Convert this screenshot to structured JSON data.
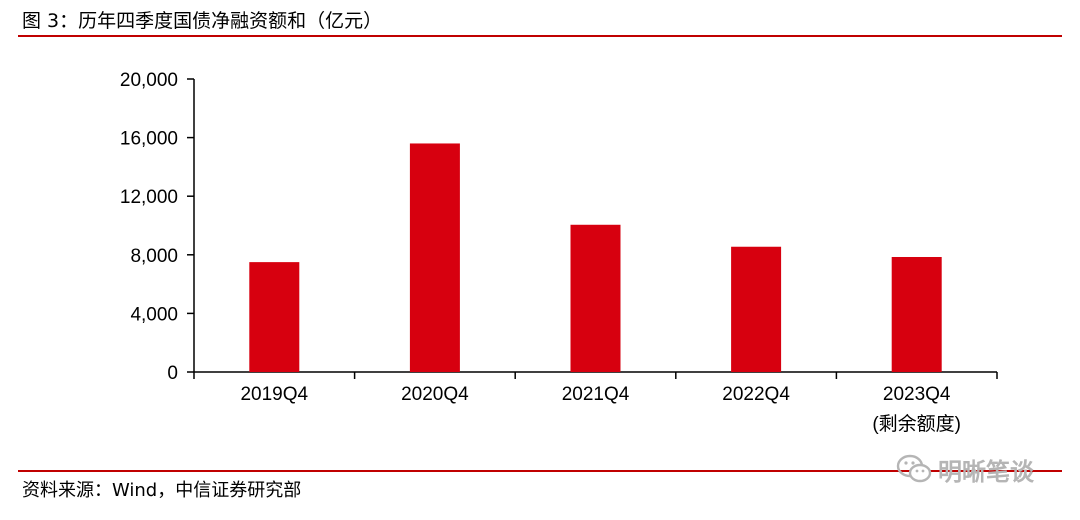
{
  "header": {
    "title": "图 3：历年四季度国债净融资额和（亿元）"
  },
  "footer": {
    "source": "资料来源：Wind，中信证券研究部"
  },
  "watermark": {
    "text": "明晰笔谈",
    "icon": "wechat-icon"
  },
  "colors": {
    "bar": "#d7000f",
    "rule": "#c00000"
  },
  "chart_data": {
    "type": "bar",
    "title": "历年四季度国债净融资额和（亿元）",
    "categories": [
      "2019Q4",
      "2020Q4",
      "2021Q4",
      "2022Q4",
      "2023Q4"
    ],
    "category_sublabels": [
      "",
      "",
      "",
      "",
      "(剩余额度)"
    ],
    "values": [
      7500,
      15600,
      10050,
      8550,
      7850
    ],
    "yticks": [
      "0",
      "4,000",
      "8,000",
      "12,000",
      "16,000",
      "20,000"
    ],
    "ylim": [
      0,
      20000
    ],
    "xlabel": "",
    "ylabel": "",
    "grid": false,
    "legend": "none"
  }
}
